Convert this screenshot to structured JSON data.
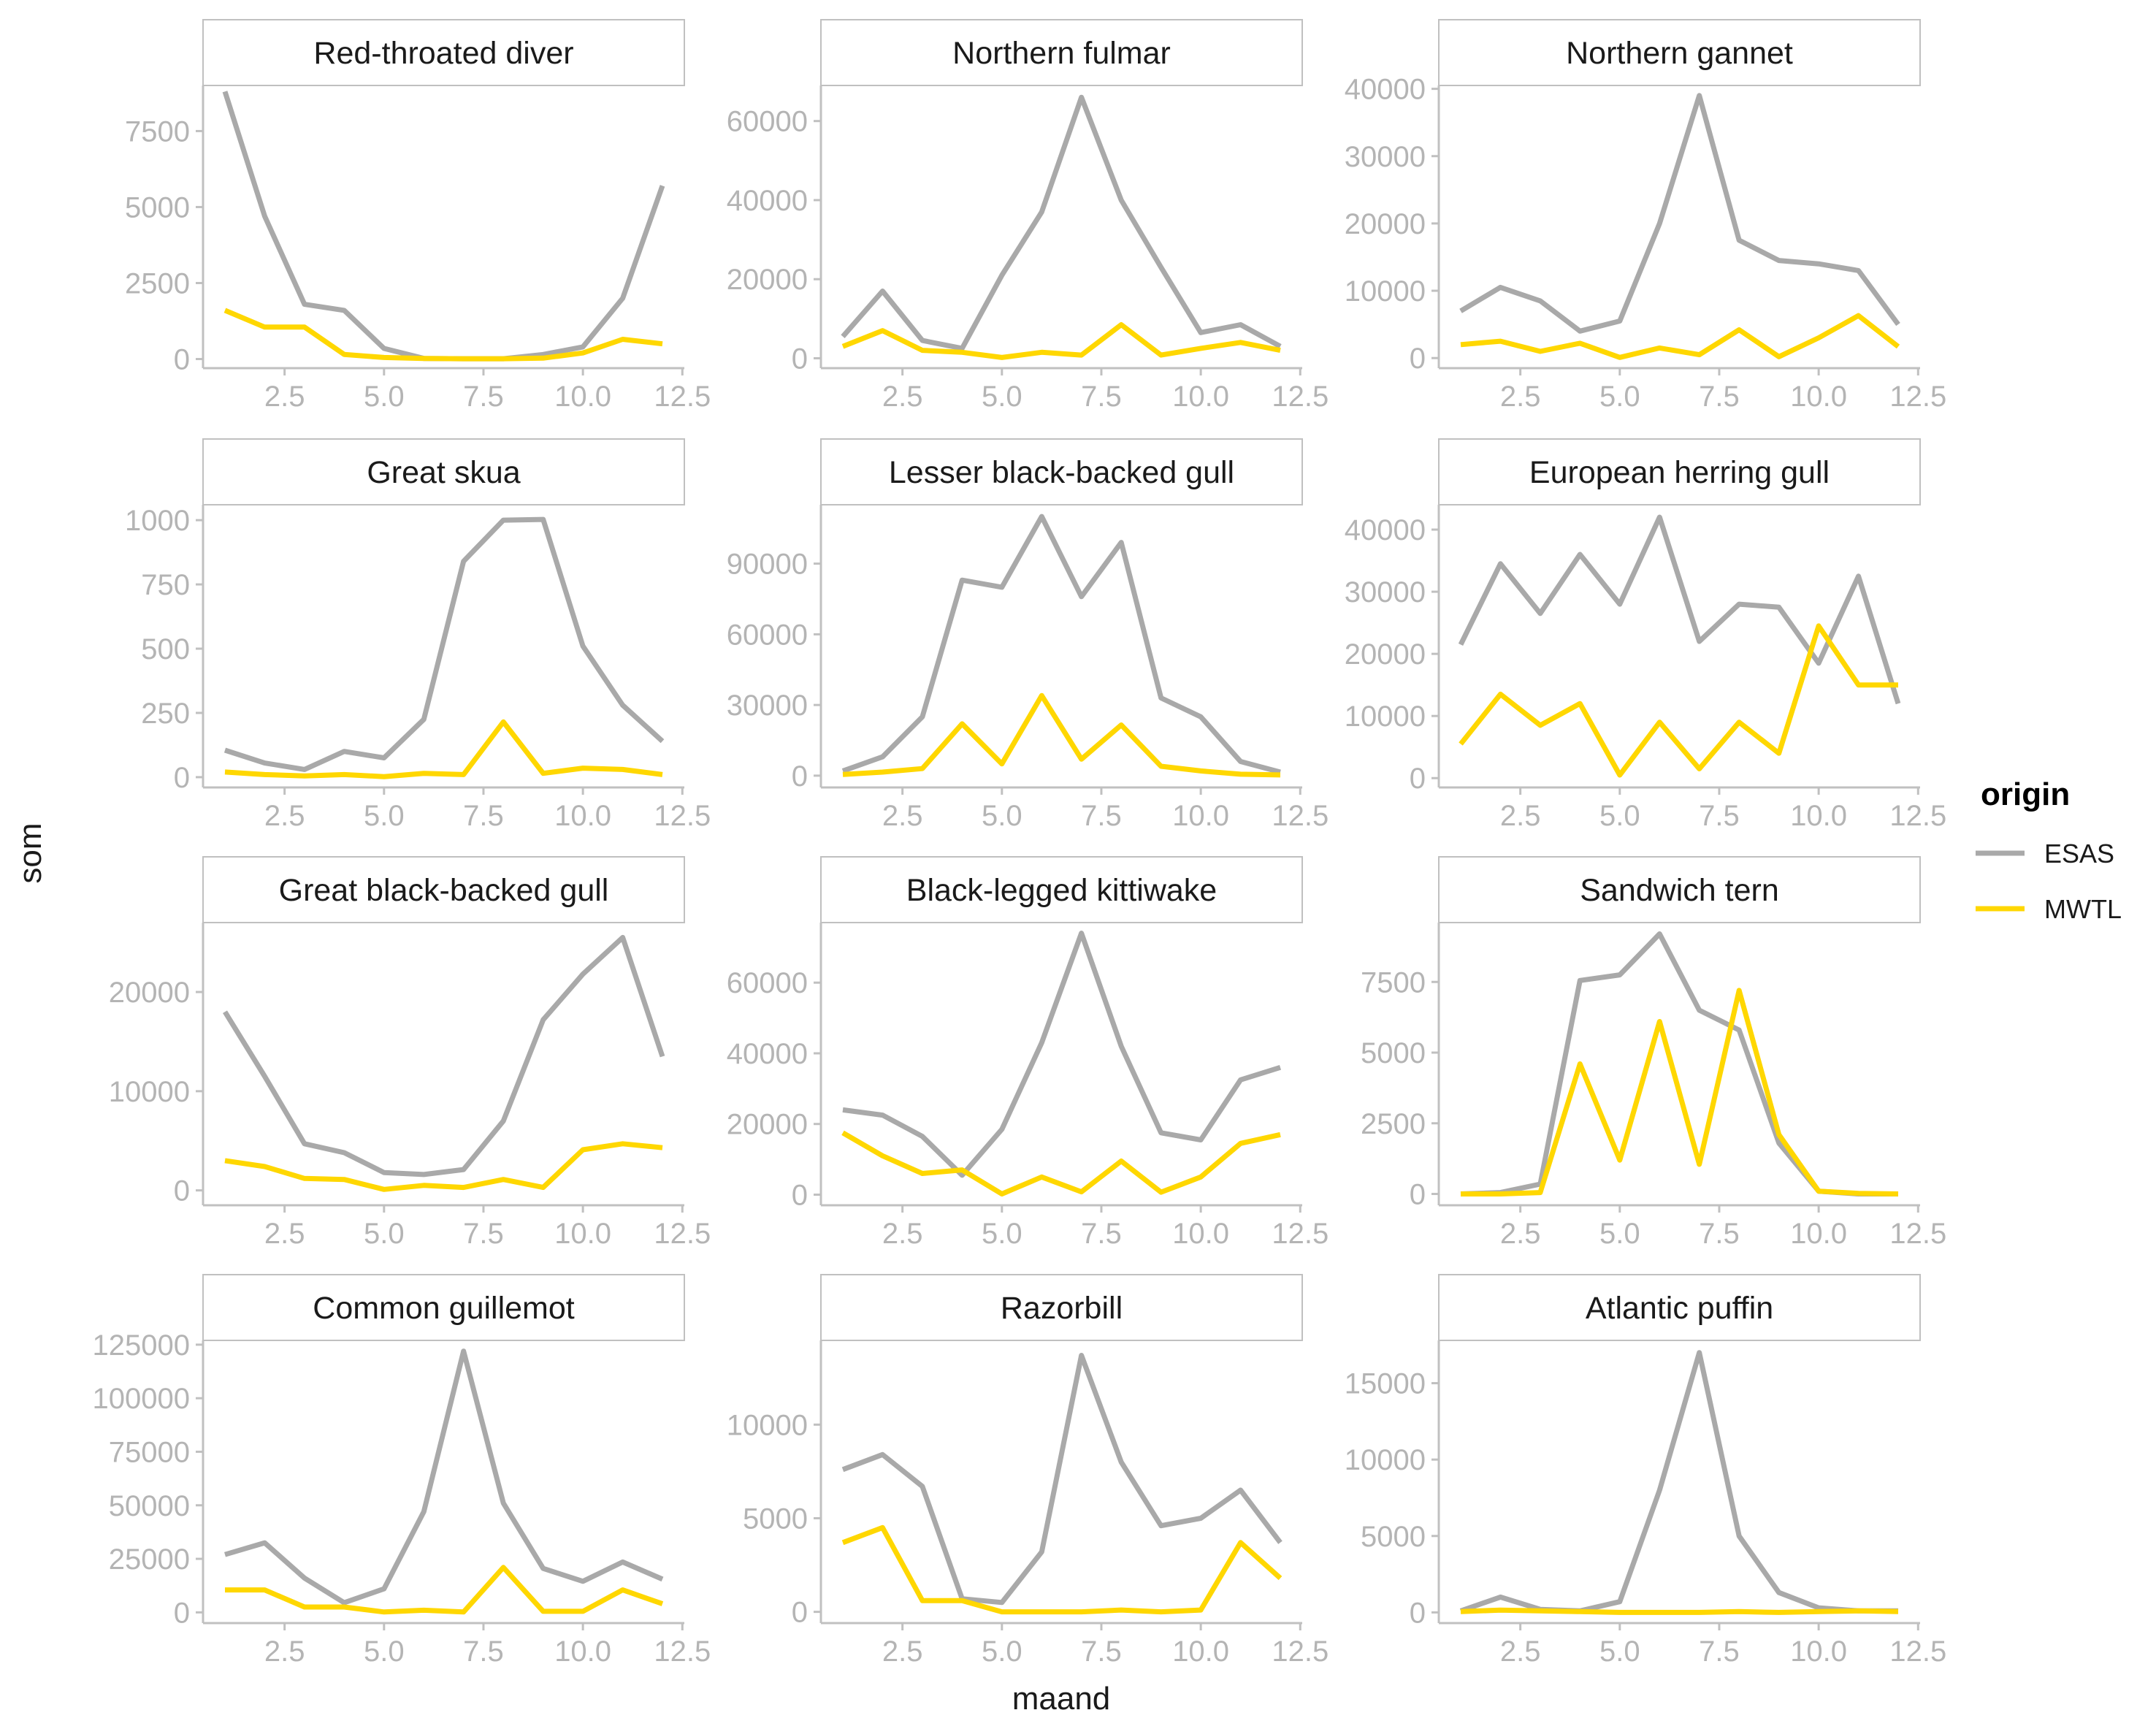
{
  "chart_data": {
    "type": "line",
    "layout": "facet-grid-4x3",
    "xlabel": "maand",
    "ylabel": "som",
    "xlim": [
      0.45,
      12.55
    ],
    "x_ticks": [
      "2.5",
      "5.0",
      "7.5",
      "10.0",
      "12.5"
    ],
    "x": [
      1,
      2,
      3,
      4,
      5,
      6,
      7,
      8,
      9,
      10,
      11,
      12
    ],
    "grid": false,
    "legend": {
      "title": "origin",
      "position": "right",
      "items": [
        {
          "name": "ESAS",
          "color": "#a9a9a9"
        },
        {
          "name": "MWTL",
          "color": "#ffd700"
        }
      ]
    },
    "panels": [
      {
        "title": "Red-throated diver",
        "ylim": [
          -300,
          9000
        ],
        "y_ticks": [
          0,
          2500,
          5000,
          7500
        ],
        "y_tick_labels": [
          "0",
          "2500",
          "5000",
          "7500"
        ],
        "series": [
          {
            "name": "ESAS",
            "values": [
              8800,
              4700,
              1800,
              1600,
              350,
              20,
              10,
              10,
              150,
              400,
              2000,
              5700
            ]
          },
          {
            "name": "MWTL",
            "values": [
              1600,
              1050,
              1050,
              150,
              50,
              20,
              10,
              10,
              30,
              200,
              650,
              500
            ]
          }
        ]
      },
      {
        "title": "Northern fulmar",
        "ylim": [
          -2500,
          69000
        ],
        "y_ticks": [
          0,
          20000,
          40000,
          60000
        ],
        "y_tick_labels": [
          "0",
          "20000",
          "40000",
          "60000"
        ],
        "series": [
          {
            "name": "ESAS",
            "values": [
              5500,
              17000,
              4500,
              2500,
              21000,
              37000,
              66000,
              40000,
              23000,
              6500,
              8500,
              3000
            ]
          },
          {
            "name": "MWTL",
            "values": [
              3000,
              7000,
              2000,
              1500,
              200,
              1500,
              800,
              8500,
              800,
              2500,
              4000,
              2000
            ]
          }
        ]
      },
      {
        "title": "Northern gannet",
        "ylim": [
          -1500,
          40500
        ],
        "y_ticks": [
          0,
          10000,
          20000,
          30000,
          40000
        ],
        "y_tick_labels": [
          "0",
          "10000",
          "20000",
          "30000",
          "40000"
        ],
        "series": [
          {
            "name": "ESAS",
            "values": [
              7000,
              10500,
              8500,
              4000,
              5500,
              20000,
              39000,
              17500,
              14500,
              14000,
              13000,
              5000
            ]
          },
          {
            "name": "MWTL",
            "values": [
              2000,
              2500,
              1000,
              2200,
              100,
              1500,
              500,
              4200,
              200,
              3000,
              6300,
              1700
            ]
          }
        ]
      },
      {
        "title": "Great skua",
        "ylim": [
          -40,
          1060
        ],
        "y_ticks": [
          0,
          250,
          500,
          750,
          1000
        ],
        "y_tick_labels": [
          "0",
          "250",
          "500",
          "750",
          "1000"
        ],
        "series": [
          {
            "name": "ESAS",
            "values": [
              105,
              55,
              30,
              100,
              75,
              225,
              840,
              1000,
              1003,
              510,
              280,
              140
            ]
          },
          {
            "name": "MWTL",
            "values": [
              20,
              10,
              5,
              10,
              2,
              15,
              10,
              215,
              15,
              35,
              30,
              10
            ]
          }
        ]
      },
      {
        "title": "Lesser black-backed gull",
        "ylim": [
          -5000,
          115000
        ],
        "y_ticks": [
          0,
          30000,
          60000,
          90000
        ],
        "y_tick_labels": [
          "0",
          "30000",
          "60000",
          "90000"
        ],
        "series": [
          {
            "name": "ESAS",
            "values": [
              2000,
              8000,
              25000,
              83000,
              80000,
              110000,
              76000,
              99000,
              33000,
              25000,
              6000,
              1500
            ]
          },
          {
            "name": "MWTL",
            "values": [
              500,
              1500,
              3000,
              22000,
              5000,
              34000,
              7000,
              21500,
              4000,
              2000,
              600,
              300
            ]
          }
        ]
      },
      {
        "title": "European herring gull",
        "ylim": [
          -1500,
          44000
        ],
        "y_ticks": [
          0,
          10000,
          20000,
          30000,
          40000
        ],
        "y_tick_labels": [
          "0",
          "10000",
          "20000",
          "30000",
          "40000"
        ],
        "series": [
          {
            "name": "ESAS",
            "values": [
              21500,
              34500,
              26500,
              36000,
              28000,
              42000,
              22000,
              28000,
              27500,
              18500,
              32500,
              12000
            ]
          },
          {
            "name": "MWTL",
            "values": [
              5500,
              13500,
              8500,
              12000,
              500,
              9000,
              1500,
              9000,
              4000,
              24500,
              15000,
              15000
            ]
          }
        ]
      },
      {
        "title": "Great black-backed gull",
        "ylim": [
          -1500,
          27000
        ],
        "y_ticks": [
          0,
          10000,
          20000
        ],
        "y_tick_labels": [
          "0",
          "10000",
          "20000"
        ],
        "series": [
          {
            "name": "ESAS",
            "values": [
              18000,
              11500,
              4700,
              3800,
              1800,
              1600,
              2100,
              7000,
              17200,
              21800,
              25500,
              13500
            ]
          },
          {
            "name": "MWTL",
            "values": [
              3000,
              2400,
              1200,
              1100,
              100,
              500,
              300,
              1100,
              300,
              4100,
              4700,
              4300
            ]
          }
        ]
      },
      {
        "title": "Black-legged kittiwake",
        "ylim": [
          -3000,
          77000
        ],
        "y_ticks": [
          0,
          20000,
          40000,
          60000
        ],
        "y_tick_labels": [
          "0",
          "20000",
          "40000",
          "60000"
        ],
        "series": [
          {
            "name": "ESAS",
            "values": [
              24000,
              22500,
              16500,
              5500,
              18500,
              43000,
              74000,
              42000,
              17500,
              15500,
              32500,
              36000
            ]
          },
          {
            "name": "MWTL",
            "values": [
              17500,
              11000,
              6000,
              7000,
              200,
              5000,
              800,
              9500,
              700,
              5000,
              14500,
              17000
            ]
          }
        ]
      },
      {
        "title": "Sandwich tern",
        "ylim": [
          -400,
          9600
        ],
        "y_ticks": [
          0,
          2500,
          5000,
          7500
        ],
        "y_tick_labels": [
          "0",
          "2500",
          "5000",
          "7500"
        ],
        "series": [
          {
            "name": "ESAS",
            "values": [
              0,
              50,
              350,
              7550,
              7750,
              9200,
              6500,
              5800,
              1800,
              100,
              0,
              0
            ]
          },
          {
            "name": "MWTL",
            "values": [
              0,
              0,
              50,
              4600,
              1200,
              6100,
              1050,
              7200,
              2100,
              100,
              20,
              0
            ]
          }
        ]
      },
      {
        "title": "Common guillemot",
        "ylim": [
          -5000,
          127000
        ],
        "y_ticks": [
          0,
          25000,
          50000,
          75000,
          100000,
          125000
        ],
        "y_tick_labels": [
          "0",
          "25000",
          "50000",
          "75000",
          "100000",
          "125000"
        ],
        "series": [
          {
            "name": "ESAS",
            "values": [
              27000,
              32500,
              16000,
              4500,
              11000,
              47000,
              122000,
              51000,
              20500,
              14500,
              23500,
              15500
            ]
          },
          {
            "name": "MWTL",
            "values": [
              10500,
              10500,
              2500,
              2500,
              200,
              1000,
              200,
              21000,
              500,
              500,
              10500,
              4000
            ]
          }
        ]
      },
      {
        "title": "Razorbill",
        "ylim": [
          -600,
          14500
        ],
        "y_ticks": [
          0,
          5000,
          10000
        ],
        "y_tick_labels": [
          "0",
          "5000",
          "10000"
        ],
        "series": [
          {
            "name": "ESAS",
            "values": [
              7600,
              8400,
              6700,
              700,
              500,
              3200,
              13700,
              8000,
              4600,
              5000,
              6500,
              3700
            ]
          },
          {
            "name": "MWTL",
            "values": [
              3700,
              4500,
              600,
              600,
              0,
              0,
              0,
              100,
              0,
              100,
              3700,
              1800
            ]
          }
        ]
      },
      {
        "title": "Atlantic puffin",
        "ylim": [
          -700,
          17800
        ],
        "y_ticks": [
          0,
          5000,
          10000,
          15000
        ],
        "y_tick_labels": [
          "0",
          "5000",
          "10000",
          "15000"
        ],
        "series": [
          {
            "name": "ESAS",
            "values": [
              100,
              1000,
              200,
              100,
              700,
              8000,
              17000,
              5000,
              1300,
              300,
              100,
              100
            ]
          },
          {
            "name": "MWTL",
            "values": [
              50,
              150,
              100,
              50,
              0,
              0,
              0,
              50,
              0,
              50,
              100,
              50
            ]
          }
        ]
      }
    ]
  }
}
